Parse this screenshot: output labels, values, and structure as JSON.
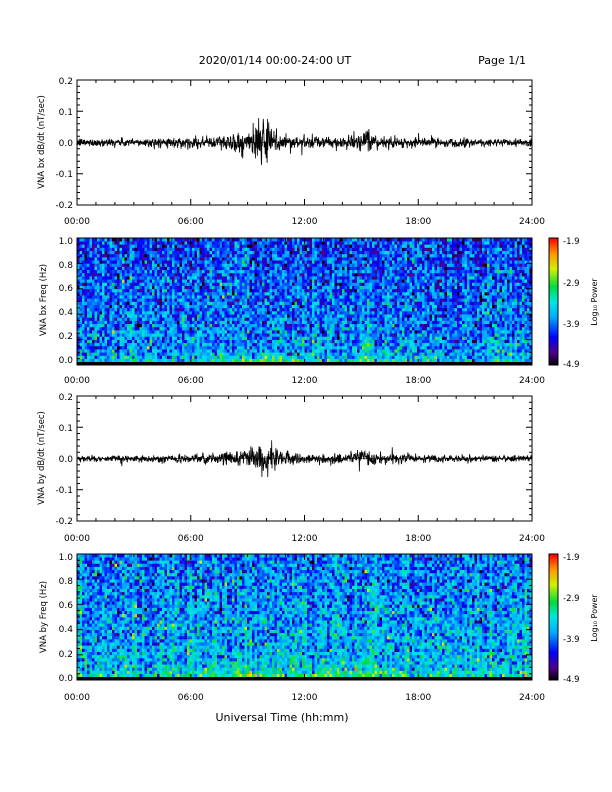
{
  "header": {
    "title": "2020/01/14  00:00-24:00 UT",
    "page": "Page 1/1"
  },
  "footer": {
    "xlabel": "Universal Time (hh:mm)"
  },
  "chart_data": [
    {
      "type": "line",
      "ylabel": "VNA bx dB/dt (nT/sec)",
      "xlim_hours": [
        0,
        24
      ],
      "ylim": [
        -0.2,
        0.2
      ],
      "xtick_labels": [
        "00:00",
        "06:00",
        "12:00",
        "18:00",
        "24:00"
      ],
      "ytick_labels": [
        "-0.2",
        "-0.1",
        "0.0",
        "0.1",
        "0.2"
      ],
      "ytick_values": [
        -0.2,
        -0.1,
        0.0,
        0.1,
        0.2
      ],
      "envelope": {
        "x_hours": [
          0,
          2,
          4,
          6,
          7,
          8,
          8.5,
          9,
          9.5,
          9.8,
          10,
          10.3,
          10.6,
          11,
          12,
          13,
          14,
          14.5,
          15,
          15.3,
          15.6,
          16,
          17,
          18,
          20,
          22,
          24
        ],
        "amplitude": [
          0.012,
          0.012,
          0.013,
          0.015,
          0.018,
          0.025,
          0.03,
          0.035,
          0.05,
          0.06,
          0.065,
          0.05,
          0.035,
          0.025,
          0.018,
          0.016,
          0.018,
          0.022,
          0.025,
          0.028,
          0.022,
          0.018,
          0.015,
          0.014,
          0.013,
          0.012,
          0.012
        ]
      }
    },
    {
      "type": "heatmap",
      "ylabel": "VNA bx Freq (Hz)",
      "xlim_hours": [
        0,
        24
      ],
      "ylim": [
        0.0,
        1.0
      ],
      "xtick_labels": [
        "00:00",
        "06:00",
        "12:00",
        "18:00",
        "24:00"
      ],
      "ytick_labels": [
        "0.0",
        "0.2",
        "0.4",
        "0.6",
        "0.8",
        "1.0"
      ],
      "ytick_values": [
        0.0,
        0.2,
        0.4,
        0.6,
        0.8,
        1.0
      ],
      "colorbar": {
        "label": "Log₁₀ Power",
        "range": [
          -4.9,
          -1.9
        ],
        "tick_labels": [
          "-1.9",
          "-2.9",
          "-3.9",
          "-4.9"
        ],
        "tick_values": [
          -1.9,
          -2.9,
          -3.9,
          -4.9
        ]
      },
      "baseline_power": -3.95,
      "low_freq_enhancement": [
        {
          "center_hours": 9.5,
          "width_hours": 2.2,
          "strength": 1.6
        },
        {
          "center_hours": 14.8,
          "width_hours": 1.6,
          "strength": 1.1
        }
      ]
    },
    {
      "type": "line",
      "ylabel": "VNA by dB/dt (nT/sec)",
      "xlim_hours": [
        0,
        24
      ],
      "ylim": [
        -0.2,
        0.2
      ],
      "xtick_labels": [
        "00:00",
        "06:00",
        "12:00",
        "18:00",
        "24:00"
      ],
      "ytick_labels": [
        "-0.2",
        "-0.1",
        "0.0",
        "0.1",
        "0.2"
      ],
      "ytick_values": [
        -0.2,
        -0.1,
        0.0,
        0.1,
        0.2
      ],
      "envelope": {
        "x_hours": [
          0,
          2,
          4,
          6,
          7,
          8,
          8.5,
          9,
          9.5,
          10,
          10.3,
          10.6,
          11,
          12,
          13,
          14,
          14.5,
          15,
          15.3,
          15.6,
          16,
          17,
          18,
          20,
          22,
          24
        ],
        "amplitude": [
          0.009,
          0.009,
          0.01,
          0.012,
          0.015,
          0.02,
          0.024,
          0.028,
          0.035,
          0.04,
          0.035,
          0.028,
          0.02,
          0.014,
          0.013,
          0.015,
          0.02,
          0.025,
          0.028,
          0.022,
          0.016,
          0.012,
          0.011,
          0.01,
          0.01,
          0.01
        ]
      }
    },
    {
      "type": "heatmap",
      "ylabel": "VNA by Freq (Hz)",
      "xlim_hours": [
        0,
        24
      ],
      "ylim": [
        0.0,
        1.0
      ],
      "xtick_labels": [
        "00:00",
        "06:00",
        "12:00",
        "18:00",
        "24:00"
      ],
      "ytick_labels": [
        "0.0",
        "0.2",
        "0.4",
        "0.6",
        "0.8",
        "1.0"
      ],
      "ytick_values": [
        0.0,
        0.2,
        0.4,
        0.6,
        0.8,
        1.0
      ],
      "colorbar": {
        "label": "Log₁₀ Power",
        "range": [
          -4.9,
          -1.9
        ],
        "tick_labels": [
          "-1.9",
          "-2.9",
          "-3.9",
          "-4.9"
        ],
        "tick_values": [
          -1.9,
          -2.9,
          -3.9,
          -4.9
        ]
      },
      "baseline_power": -3.75,
      "low_freq_enhancement": [
        {
          "center_hours": 9.0,
          "width_hours": 2.6,
          "strength": 1.2
        },
        {
          "center_hours": 14.8,
          "width_hours": 1.8,
          "strength": 1.0
        }
      ]
    }
  ]
}
